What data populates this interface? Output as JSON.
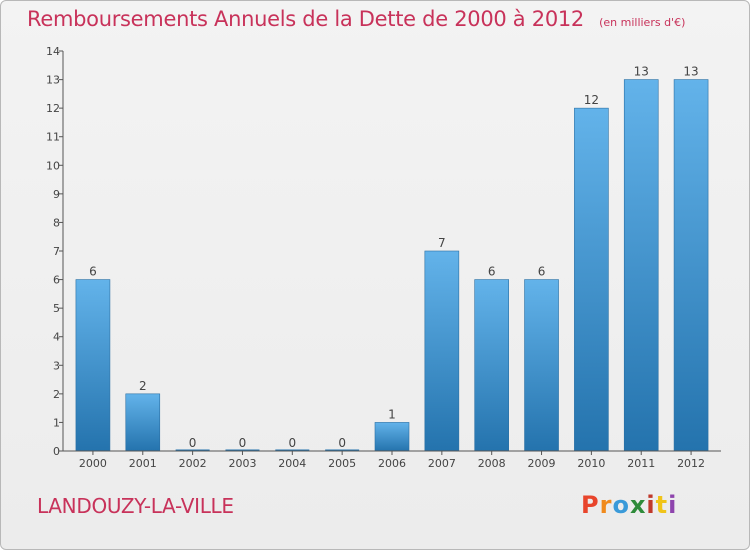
{
  "title": "Remboursements Annuels de la Dette de 2000 à 2012",
  "subtitle": "(en milliers d'€)",
  "commune": "LANDOUZY-LA-VILLE",
  "logo": {
    "letters": [
      "P",
      "r",
      "o",
      "x",
      "i",
      "t",
      "i"
    ],
    "colors": [
      "#e8452c",
      "#f08a1c",
      "#3a9ad9",
      "#2e8b3a",
      "#c0392b",
      "#f0c419",
      "#8e44ad"
    ]
  },
  "colors": {
    "bar_top": "#63b3ea",
    "bar_bottom": "#2473ad",
    "axis": "#555555",
    "accent": "#c8325a"
  },
  "chart_data": {
    "type": "bar",
    "title": "Remboursements Annuels de la Dette de 2000 à 2012",
    "subtitle": "(en milliers d'€)",
    "categories": [
      "2000",
      "2001",
      "2002",
      "2003",
      "2004",
      "2005",
      "2006",
      "2007",
      "2008",
      "2009",
      "2010",
      "2011",
      "2012"
    ],
    "values": [
      6,
      2,
      0,
      0,
      0,
      0,
      1,
      7,
      6,
      6,
      12,
      13,
      13
    ],
    "value_labels": [
      "6",
      "2",
      "0",
      "0",
      "0",
      "0",
      "1",
      "7",
      "6",
      "6",
      "12",
      "13",
      "13"
    ],
    "ylim": [
      0,
      14
    ],
    "yticks": [
      0,
      1,
      2,
      3,
      4,
      5,
      6,
      7,
      8,
      9,
      10,
      11,
      12,
      13,
      14
    ],
    "grid": false,
    "legend": "none"
  }
}
